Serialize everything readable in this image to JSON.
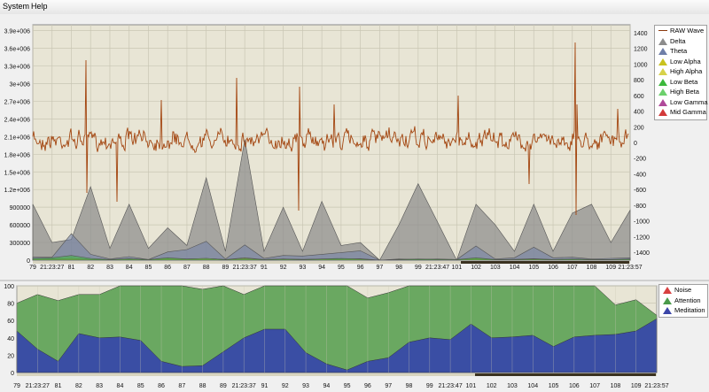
{
  "menu": {
    "items": [
      "System",
      "Help"
    ]
  },
  "eeg_chart": {
    "legend": [
      {
        "label": "RAW Wave",
        "color": "#8b3a0e",
        "kind": "line"
      },
      {
        "label": "Delta",
        "color": "#8c8c8c",
        "kind": "area"
      },
      {
        "label": "Theta",
        "color": "#6f7fa8",
        "kind": "area"
      },
      {
        "label": "Low Alpha",
        "color": "#c9c21e",
        "kind": "area"
      },
      {
        "label": "High Alpha",
        "color": "#d7d24a",
        "kind": "area"
      },
      {
        "label": "Low Beta",
        "color": "#3cb83c",
        "kind": "area"
      },
      {
        "label": "High Beta",
        "color": "#6cd06c",
        "kind": "area"
      },
      {
        "label": "Low Gamma",
        "color": "#b04a9a",
        "kind": "area"
      },
      {
        "label": "Mid Gamma",
        "color": "#d23a3a",
        "kind": "area"
      }
    ],
    "left_ticks": [
      "3.9e+006",
      "3.6e+006",
      "3.3e+006",
      "3e+006",
      "2.7e+006",
      "2.4e+006",
      "2.1e+006",
      "1.8e+006",
      "1.5e+006",
      "1.2e+006",
      "900000",
      "600000",
      "300000",
      "0"
    ],
    "right_ticks": [
      "1400",
      "1200",
      "1000",
      "800",
      "600",
      "400",
      "200",
      "0",
      "-200",
      "-400",
      "-600",
      "-800",
      "-1000",
      "-1200",
      "-1400"
    ],
    "x_ticks": [
      "79",
      "21:23:27",
      "81",
      "82",
      "83",
      "84",
      "85",
      "86",
      "87",
      "88",
      "89",
      "21:23:37",
      "91",
      "92",
      "93",
      "94",
      "95",
      "96",
      "97",
      "98",
      "99",
      "21:23:47",
      "101",
      "102",
      "103",
      "104",
      "105",
      "106",
      "107",
      "108",
      "109",
      "21:23:57"
    ]
  },
  "esense_chart": {
    "legend": [
      {
        "label": "Noise",
        "color": "#d84040"
      },
      {
        "label": "Attention",
        "color": "#4a9a4a"
      },
      {
        "label": "Meditation",
        "color": "#3c46a8"
      }
    ],
    "y_ticks": [
      "100",
      "80",
      "60",
      "40",
      "20",
      "0"
    ],
    "x_ticks": [
      "79",
      "21:23:27",
      "81",
      "82",
      "83",
      "84",
      "85",
      "86",
      "87",
      "88",
      "89",
      "21:23:37",
      "91",
      "92",
      "93",
      "94",
      "95",
      "96",
      "97",
      "98",
      "99",
      "21:23:47",
      "101",
      "102",
      "103",
      "104",
      "105",
      "106",
      "107",
      "108",
      "109",
      "21:23:57"
    ]
  },
  "chart_data": [
    {
      "type": "area",
      "x": [
        79,
        80,
        81,
        82,
        83,
        84,
        85,
        86,
        87,
        88,
        89,
        90,
        91,
        92,
        93,
        94,
        95,
        96,
        97,
        98,
        99,
        100,
        101,
        102,
        103,
        104,
        105,
        106,
        107,
        108,
        109,
        110
      ],
      "xlim": [
        79,
        110
      ],
      "ylim": [
        0,
        4000000
      ],
      "ylabel_right_range": [
        -1500,
        1500
      ],
      "series": [
        {
          "name": "Delta",
          "values": [
            950000,
            300000,
            350000,
            1250000,
            200000,
            950000,
            200000,
            550000,
            250000,
            1400000,
            150000,
            2050000,
            150000,
            900000,
            150000,
            1000000,
            250000,
            300000,
            0,
            600000,
            1300000,
            650000,
            0,
            950000,
            600000,
            150000,
            950000,
            150000,
            800000,
            950000,
            300000,
            850000
          ]
        },
        {
          "name": "Theta",
          "values": [
            50000,
            50000,
            450000,
            100000,
            20000,
            60000,
            10000,
            140000,
            180000,
            320000,
            20000,
            260000,
            30000,
            80000,
            70000,
            100000,
            130000,
            160000,
            0,
            20000,
            10000,
            20000,
            10000,
            240000,
            20000,
            40000,
            220000,
            40000,
            50000,
            20000,
            30000,
            40000
          ]
        },
        {
          "name": "Low Alpha",
          "values": [
            20000,
            20000,
            30000,
            15000,
            10000,
            20000,
            10000,
            30000,
            20000,
            30000,
            10000,
            40000,
            10000,
            20000,
            15000,
            20000,
            20000,
            25000,
            0,
            10000,
            10000,
            10000,
            10000,
            30000,
            10000,
            15000,
            25000,
            10000,
            15000,
            10000,
            10000,
            15000
          ]
        },
        {
          "name": "Low Beta",
          "values": [
            30000,
            40000,
            80000,
            30000,
            10000,
            25000,
            10000,
            40000,
            20000,
            30000,
            10000,
            30000,
            10000,
            20000,
            10000,
            20000,
            30000,
            20000,
            0,
            10000,
            20000,
            15000,
            10000,
            40000,
            10000,
            10000,
            20000,
            10000,
            20000,
            10000,
            10000,
            20000
          ]
        }
      ]
    },
    {
      "type": "area",
      "x": [
        79,
        80,
        81,
        82,
        83,
        84,
        85,
        86,
        87,
        88,
        89,
        90,
        91,
        92,
        93,
        94,
        95,
        96,
        97,
        98,
        99,
        100,
        101,
        102,
        103,
        104,
        105,
        106,
        107,
        108,
        109,
        110
      ],
      "xlim": [
        79,
        110
      ],
      "ylim": [
        0,
        100
      ],
      "series": [
        {
          "name": "Attention",
          "values": [
            80,
            90,
            83,
            90,
            90,
            100,
            100,
            100,
            100,
            96,
            100,
            90,
            100,
            100,
            100,
            100,
            100,
            86,
            92,
            100,
            100,
            100,
            100,
            100,
            100,
            100,
            100,
            100,
            100,
            78,
            84,
            66
          ]
        },
        {
          "name": "Meditation",
          "values": [
            48,
            27,
            13,
            45,
            40,
            41,
            37,
            13,
            7,
            8,
            24,
            40,
            50,
            50,
            23,
            10,
            3,
            13,
            17,
            35,
            40,
            38,
            56,
            40,
            41,
            43,
            30,
            41,
            43,
            44,
            48,
            62
          ]
        }
      ]
    }
  ]
}
